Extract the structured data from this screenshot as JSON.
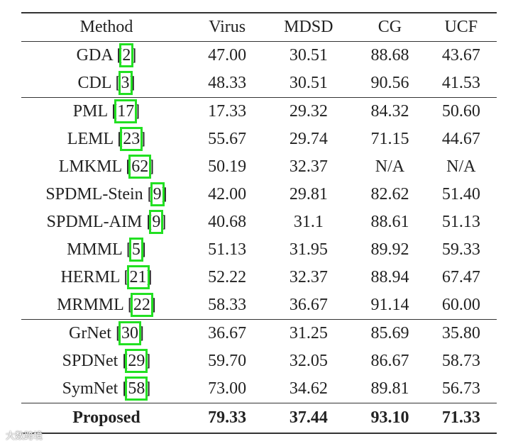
{
  "headers": [
    "Method",
    "Virus",
    "MDSD",
    "CG",
    "UCF"
  ],
  "rows": [
    {
      "name": "GDA",
      "cite": "2",
      "vals": [
        "47.00",
        "30.51",
        "88.68",
        "43.67"
      ]
    },
    {
      "name": "CDL",
      "cite": "3",
      "vals": [
        "48.33",
        "30.51",
        "90.56",
        "41.53"
      ]
    },
    {
      "name": "PML",
      "cite": "17",
      "vals": [
        "17.33",
        "29.32",
        "84.32",
        "50.60"
      ]
    },
    {
      "name": "LEML",
      "cite": "23",
      "vals": [
        "55.67",
        "29.74",
        "71.15",
        "44.67"
      ]
    },
    {
      "name": "LMKML",
      "cite": "62",
      "vals": [
        "50.19",
        "32.37",
        "N/A",
        "N/A"
      ]
    },
    {
      "name": "SPDML-Stein",
      "cite": "9",
      "vals": [
        "42.00",
        "29.81",
        "82.62",
        "51.40"
      ]
    },
    {
      "name": "SPDML-AIM",
      "cite": "9",
      "vals": [
        "40.68",
        "31.1",
        "88.61",
        "51.13"
      ]
    },
    {
      "name": "MMML",
      "cite": "5",
      "vals": [
        "51.13",
        "31.95",
        "89.92",
        "59.33"
      ]
    },
    {
      "name": "HERML",
      "cite": "21",
      "vals": [
        "52.22",
        "32.37",
        "88.94",
        "67.47"
      ]
    },
    {
      "name": "MRMML",
      "cite": "22",
      "vals": [
        "58.33",
        "36.67",
        "91.14",
        "60.00"
      ]
    },
    {
      "name": "GrNet",
      "cite": "30",
      "vals": [
        "36.67",
        "31.25",
        "85.69",
        "35.80"
      ]
    },
    {
      "name": "SPDNet",
      "cite": "29",
      "vals": [
        "59.70",
        "32.05",
        "86.67",
        "58.73"
      ]
    },
    {
      "name": "SymNet",
      "cite": "58",
      "vals": [
        "73.00",
        "34.62",
        "89.81",
        "56.73"
      ]
    }
  ],
  "proposed": {
    "name": "Proposed",
    "vals": [
      "79.33",
      "37.44",
      "93.10",
      "71.33"
    ]
  },
  "watermark": "大数跨境"
}
